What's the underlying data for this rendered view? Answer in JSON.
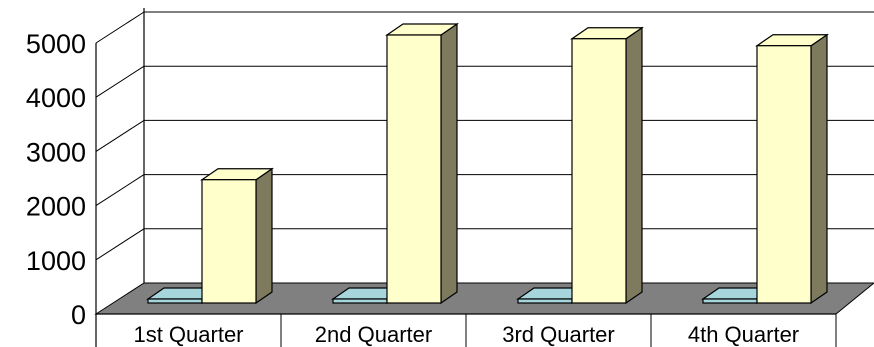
{
  "chart_data": {
    "type": "bar",
    "style": "3d-clustered-column",
    "categories": [
      "1st Quarter",
      "2nd Quarter",
      "3rd Quarter",
      "4th Quarter"
    ],
    "series": [
      {
        "values": [
          20,
          140,
          40,
          40
        ],
        "color": "#a6d6dc"
      },
      {
        "values": [
          2300,
          5000,
          4930,
          4800
        ],
        "color": "#ffffcc"
      }
    ],
    "yticks": [
      0,
      1000,
      2000,
      3000,
      4000,
      5000
    ],
    "ylim": [
      0,
      5000
    ],
    "title": "",
    "xlabel": "",
    "ylabel": "",
    "gridlines": true,
    "legend": "none",
    "colors": {
      "floor": "#808080",
      "side": "#7d7a5e",
      "top": "#ffffcc",
      "secondary_side": "#5f8f95"
    }
  }
}
